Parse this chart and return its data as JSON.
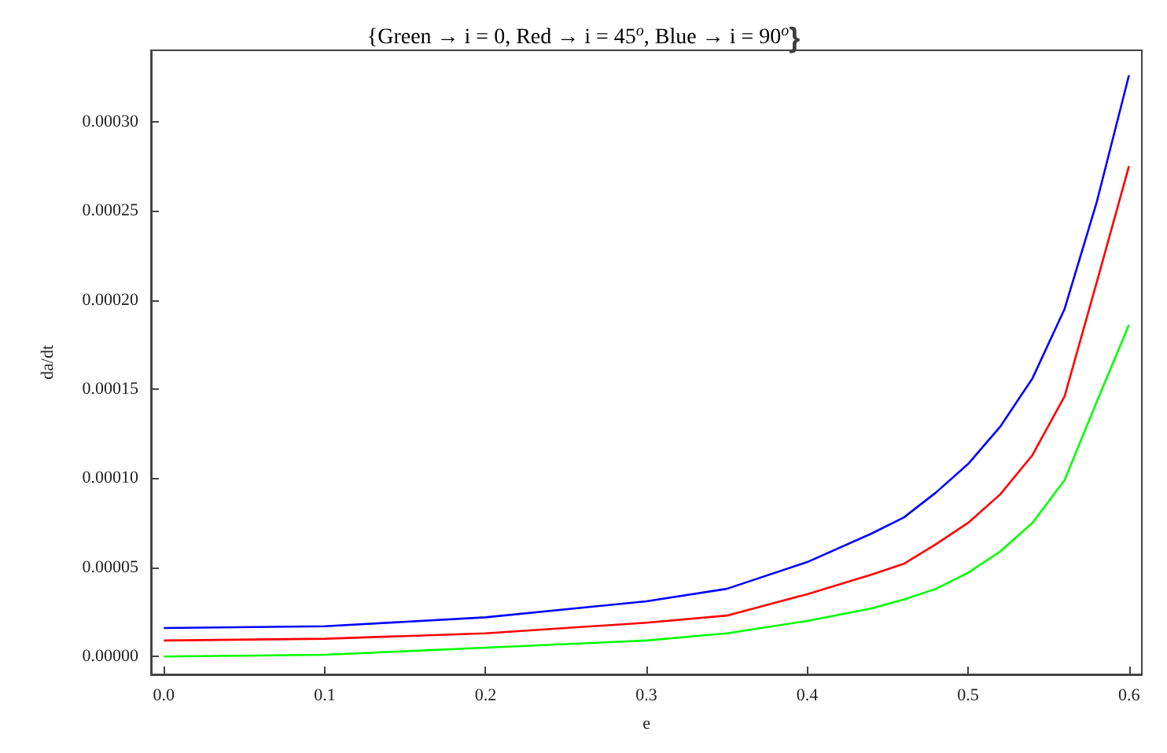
{
  "chart_data": {
    "type": "line",
    "title": "{Green → i = 0, Red → i = 45$^{o}$, Blue → i = 90$^{o}$}",
    "xlabel": "e",
    "ylabel": "da/dt",
    "x": [
      0,
      0.1,
      0.2,
      0.3,
      0.35,
      0.4,
      0.44,
      0.46,
      0.48,
      0.5,
      0.52,
      0.54,
      0.56,
      0.58,
      0.6
    ],
    "series": [
      {
        "color": "#00ff00",
        "values": [
          0,
          1e-06,
          5e-06,
          9e-06,
          1.3e-05,
          2e-05,
          2.7e-05,
          3.2e-05,
          3.8e-05,
          4.7e-05,
          5.9e-05,
          7.5e-05,
          9.9e-05,
          0.000143,
          0.000186
        ]
      },
      {
        "color": "#ff0000",
        "values": [
          9e-06,
          1e-05,
          1.3e-05,
          1.9e-05,
          2.3e-05,
          3.5e-05,
          4.6e-05,
          5.2e-05,
          6.3e-05,
          7.5e-05,
          9.1e-05,
          0.000113,
          0.000146,
          0.00021,
          0.000275
        ]
      },
      {
        "color": "#0000ff",
        "values": [
          1.6e-05,
          1.7e-05,
          2.2e-05,
          3.1e-05,
          3.8e-05,
          5.3e-05,
          6.9e-05,
          7.8e-05,
          9.2e-05,
          0.000108,
          0.000129,
          0.000156,
          0.000195,
          0.000255,
          0.000326
        ]
      }
    ],
    "xlim": [
      -0.008,
      0.608
    ],
    "ylim": [
      -1e-05,
      0.00034
    ],
    "xticks": [
      {
        "value": 0,
        "label": "0.0"
      },
      0.1,
      0.2,
      0.3,
      0.4,
      0.5,
      0.6
    ],
    "yticks": [
      {
        "value": 0,
        "label": "0.00000"
      },
      {
        "value": 5e-05,
        "label": "0.00005"
      },
      {
        "value": 0.0001,
        "label": "0.00010"
      },
      {
        "value": 0.00015,
        "label": "0.00015"
      },
      {
        "value": 0.0002,
        "label": "0.00020"
      },
      {
        "value": 0.00025,
        "label": "0.00025"
      },
      {
        "value": 0.0003,
        "label": "0.00030"
      }
    ],
    "grid": false,
    "marker": "none",
    "line_style": "solid"
  }
}
